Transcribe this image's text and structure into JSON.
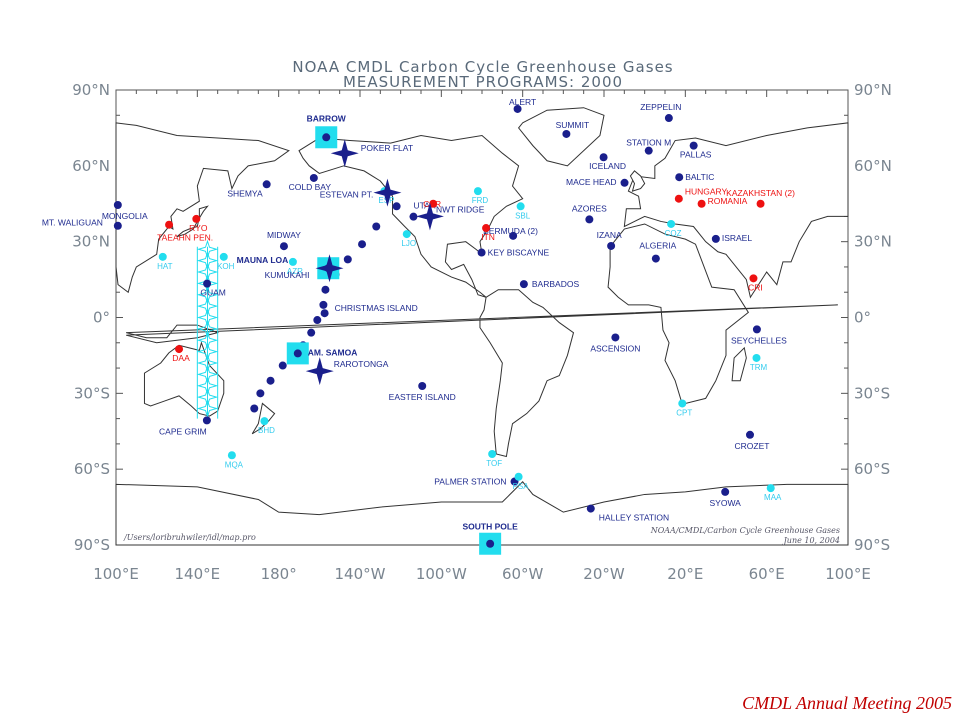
{
  "title": {
    "line1": "NOAA CMDL Carbon Cycle Greenhouse Gases",
    "line2": "MEASUREMENT PROGRAMS: 2000"
  },
  "axes": {
    "lon_min": 100,
    "lon_max": 460,
    "lat_min": -90,
    "lat_max": 90,
    "lon_ticks": [
      "100°E",
      "140°E",
      "180°",
      "140°W",
      "100°W",
      "60°W",
      "20°W",
      "20°E",
      "60°E",
      "100°E"
    ],
    "lat_ticks": [
      "90°N",
      "60°N",
      "30°N",
      "0°",
      "30°S",
      "60°S",
      "90°S"
    ]
  },
  "credits": {
    "left": "/Users/loribruhwiler/idl/map.pro",
    "right_line1": "NOAA/CMDL/Carbon Cycle Greenhouse Gases",
    "right_line2": "June 10, 2004"
  },
  "legend_colors": {
    "navy": "#1a1f8c",
    "red": "#ee1111",
    "cyan": "#22ddee"
  },
  "stations_navy": [
    {
      "name": "ALERT",
      "lon": 297.5,
      "lat": 82.5
    },
    {
      "name": "BARROW",
      "lon": 203.4,
      "lat": 71.3
    },
    {
      "name": "ZEPPELIN",
      "lon": 371.9,
      "lat": 78.9
    },
    {
      "name": "SUMMIT",
      "lon": 321.5,
      "lat": 72.6
    },
    {
      "name": "PALLAS",
      "lon": 384.1,
      "lat": 68.0
    },
    {
      "name": "STATION M",
      "lon": 362.0,
      "lat": 66.0
    },
    {
      "name": "ICELAND",
      "lon": 339.8,
      "lat": 63.4
    },
    {
      "name": "BALTIC",
      "lon": 377.0,
      "lat": 55.5
    },
    {
      "name": "MACE HEAD",
      "lon": 350.1,
      "lat": 53.3
    },
    {
      "name": "SHEMYA",
      "lon": 174.1,
      "lat": 52.7
    },
    {
      "name": "COLD BAY",
      "lon": 197.3,
      "lat": 55.2
    },
    {
      "name": "MONGOLIA",
      "lon": 100.9,
      "lat": 44.5
    },
    {
      "name": "UTAH",
      "lon": 246.3,
      "lat": 39.9
    },
    {
      "name": "MIDWAY",
      "lon": 182.6,
      "lat": 28.2
    },
    {
      "name": "AZORES",
      "lon": 332.8,
      "lat": 38.8
    },
    {
      "name": "IZANA",
      "lon": 343.5,
      "lat": 28.3
    },
    {
      "name": "BERMUDA (2)",
      "lon": 295.3,
      "lat": 32.3
    },
    {
      "name": "KEY BISCAYNE",
      "lon": 279.8,
      "lat": 25.7
    },
    {
      "name": "ISRAEL",
      "lon": 35.0,
      "lat": 31.1
    },
    {
      "name": "ALGERIA",
      "lon": 5.5,
      "lat": 23.3
    },
    {
      "name": "MT. WALIGUAN",
      "lon": 100.9,
      "lat": 36.3
    },
    {
      "name": "GUAM",
      "lon": 144.8,
      "lat": 13.4
    },
    {
      "name": "BARBADOS",
      "lon": 300.6,
      "lat": 13.2
    },
    {
      "name": "CHRISTMAS ISLAND",
      "lon": 202.6,
      "lat": 1.7
    },
    {
      "name": "SEYCHELLES",
      "lon": 55.2,
      "lat": -4.7
    },
    {
      "name": "ASCENSION",
      "lon": 345.6,
      "lat": -7.9
    },
    {
      "name": "EASTER ISLAND",
      "lon": 250.6,
      "lat": -27.1
    },
    {
      "name": "CAPE GRIM",
      "lon": 144.7,
      "lat": -40.7
    },
    {
      "name": "CROZET",
      "lon": 51.8,
      "lat": -46.4
    },
    {
      "name": "PALMER STATION",
      "lon": 296.0,
      "lat": -64.9
    },
    {
      "name": "SYOWA",
      "lon": 39.6,
      "lat": -69.0
    },
    {
      "name": "HALLEY STATION",
      "lon": 333.5,
      "lat": -75.6
    },
    {
      "name": "SOUTH POLE",
      "lon": 284.0,
      "lat": -89.5
    }
  ],
  "stations_red": [
    {
      "name": "RYO",
      "lon": 139.5,
      "lat": 39.0
    },
    {
      "name": "TAEAHN PEN.",
      "lon": 126.1,
      "lat": 36.7
    },
    {
      "name": "DAA",
      "lon": 131.0,
      "lat": -12.5
    },
    {
      "name": "CAR",
      "lon": 256.0,
      "lat": 45.0
    },
    {
      "name": "ITN",
      "lon": 282.0,
      "lat": 35.4
    },
    {
      "name": "HUNGARY",
      "lon": 376.8,
      "lat": 47.0
    },
    {
      "name": "ROMANIA",
      "lon": 388.0,
      "lat": 45.0
    },
    {
      "name": "KAZAKHSTAN (2)",
      "lon": 417.0,
      "lat": 45.0
    },
    {
      "name": "CRI",
      "lon": 413.5,
      "lat": 15.5
    }
  ],
  "stations_cyan": [
    {
      "name": "AZR",
      "lon": 187.0,
      "lat": 22.0
    },
    {
      "name": "ESP",
      "lon": 232.0,
      "lat": 50.0
    },
    {
      "name": "LJO",
      "lon": 243.0,
      "lat": 33.0
    },
    {
      "name": "FRD",
      "lon": 278.0,
      "lat": 50.0
    },
    {
      "name": "SBL",
      "lon": 299.0,
      "lat": 44.0
    },
    {
      "name": "TOF",
      "lon": 285.0,
      "lat": -54.0
    },
    {
      "name": "PSA",
      "lon": 298.0,
      "lat": -63.0
    },
    {
      "name": "CPT",
      "lon": 378.5,
      "lat": -34.0
    },
    {
      "name": "MAA",
      "lon": 422.0,
      "lat": -67.5
    },
    {
      "name": "TRM",
      "lon": 415.0,
      "lat": -16.0
    },
    {
      "name": "MQA",
      "lon": 157.0,
      "lat": -54.5
    },
    {
      "name": "BHD",
      "lon": 173.0,
      "lat": -41.0
    },
    {
      "name": "HAT",
      "lon": 123.0,
      "lat": 24.0
    },
    {
      "name": "KOH",
      "lon": 153.0,
      "lat": 24.0
    },
    {
      "name": "COZ",
      "lon": 373.0,
      "lat": 37.0
    }
  ],
  "ship_tracks": [
    {
      "lon1": 145,
      "lat1": 28,
      "lon2": 145,
      "lat2": -40
    },
    {
      "lon1": 140,
      "lat1": 28,
      "lon2": 140,
      "lat2": -40
    },
    {
      "lon1": 150,
      "lat1": 28,
      "lon2": 150,
      "lat2": -40
    }
  ],
  "pacific_cruise": [
    {
      "lon": 238,
      "lat": 44
    },
    {
      "lon": 228,
      "lat": 36
    },
    {
      "lon": 221,
      "lat": 29
    },
    {
      "lon": 214,
      "lat": 23
    },
    {
      "lon": 208,
      "lat": 17
    },
    {
      "lon": 203,
      "lat": 11
    },
    {
      "lon": 202,
      "lat": 5
    },
    {
      "lon": 199,
      "lat": -1
    },
    {
      "lon": 196,
      "lat": -6
    },
    {
      "lon": 192,
      "lat": -11
    },
    {
      "lon": 188,
      "lat": -15
    },
    {
      "lon": 182,
      "lat": -19
    },
    {
      "lon": 176,
      "lat": -25
    },
    {
      "lon": 171,
      "lat": -30
    },
    {
      "lon": 168,
      "lat": -36
    }
  ],
  "aircraft_sites": [
    {
      "name": "POKER FLAT",
      "lon": 212.5,
      "lat": 65.0
    },
    {
      "name": "ESTEVAN PT.",
      "lon": 233.5,
      "lat": 49.4
    },
    {
      "name": "NWT RIDGE",
      "lon": 254.4,
      "lat": 40.0
    },
    {
      "name": "RAROTONGA",
      "lon": 200.2,
      "lat": -21.2
    },
    {
      "name": "KUMUKAHI",
      "lon": 205.0,
      "lat": 19.5
    }
  ],
  "observatories": [
    {
      "name": "BARROW",
      "lon": 203.4,
      "lat": 71.3
    },
    {
      "name": "MAUNA LOA",
      "lon": 204.4,
      "lat": 19.5
    },
    {
      "name": "AM. SAMOA",
      "lon": 189.4,
      "lat": -14.2
    },
    {
      "name": "SOUTH POLE",
      "lon": 284.0,
      "lat": -89.5
    }
  ],
  "footer_text": "CMDL Annual Meeting 2005"
}
